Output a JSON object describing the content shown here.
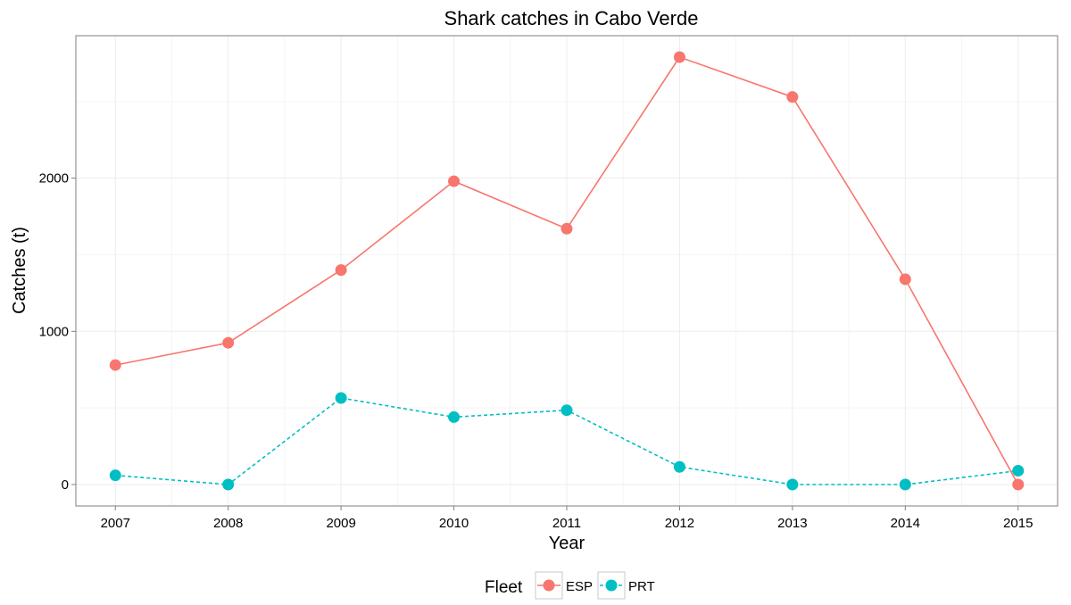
{
  "chart_data": {
    "type": "line",
    "title": "Shark catches in Cabo Verde",
    "xlabel": "Year",
    "ylabel": "Catches (t)",
    "x": [
      2007,
      2008,
      2009,
      2010,
      2011,
      2012,
      2013,
      2014,
      2015
    ],
    "xlim": [
      2006.65,
      2015.35
    ],
    "ylim": [
      -140,
      2930
    ],
    "yticks": [
      0,
      1000,
      2000
    ],
    "grid": true,
    "legend": {
      "title": "Fleet",
      "position": "bottom"
    },
    "series": [
      {
        "name": "ESP",
        "color": "#F8766D",
        "linestyle": "solid",
        "values": [
          780,
          925,
          1400,
          1980,
          1670,
          2790,
          2530,
          1340,
          0
        ]
      },
      {
        "name": "PRT",
        "color": "#00BFC4",
        "linestyle": "dashed",
        "values": [
          60,
          0,
          565,
          440,
          485,
          115,
          0,
          0,
          90
        ]
      }
    ]
  }
}
